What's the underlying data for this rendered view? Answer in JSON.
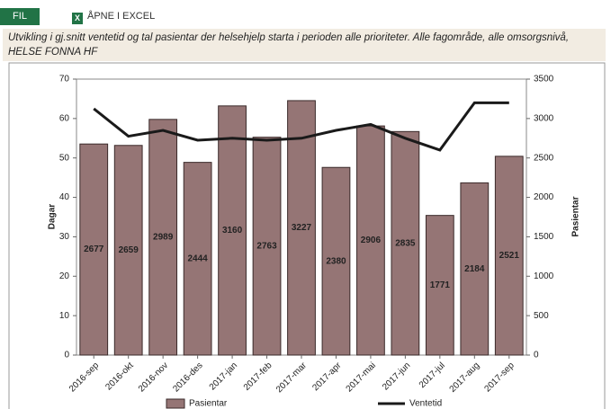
{
  "toolbar": {
    "file": "FIL",
    "excel": "ÅPNE I EXCEL"
  },
  "chart_data": {
    "type": "bar-line",
    "title": "Utvikling i gj.snitt ventetid og tal pasientar der helsehjelp starta i perioden alle prioriteter. Alle fagområde, alle omsorgsnivå, HELSE FONNA HF",
    "ylabel": "Dagar",
    "y2label": "Pasientar",
    "categories": [
      "2016-sep",
      "2016-okt",
      "2016-nov",
      "2016-des",
      "2017-jan",
      "2017-feb",
      "2017-mar",
      "2017-apr",
      "2017-mai",
      "2017-jun",
      "2017-jul",
      "2017-aug",
      "2017-sep"
    ],
    "series": [
      {
        "name": "Pasientar",
        "type": "bar",
        "axis": "y2",
        "color": "#957575",
        "values": [
          2677,
          2659,
          2989,
          2444,
          3160,
          2763,
          3227,
          2380,
          2906,
          2835,
          1771,
          2184,
          2521
        ]
      },
      {
        "name": "Ventetid",
        "type": "line",
        "axis": "y",
        "color": "#1a1a1a",
        "values": [
          62.5,
          55.5,
          57,
          54.5,
          55,
          54.5,
          55,
          57,
          58.5,
          55,
          52,
          64,
          64
        ]
      }
    ],
    "ylim": [
      0,
      70
    ],
    "yticks": [
      0,
      10,
      20,
      30,
      40,
      50,
      60,
      70
    ],
    "y2lim": [
      0,
      3500
    ],
    "y2ticks": [
      0,
      500,
      1000,
      1500,
      2000,
      2500,
      3000,
      3500
    ],
    "legend": "bottom"
  }
}
